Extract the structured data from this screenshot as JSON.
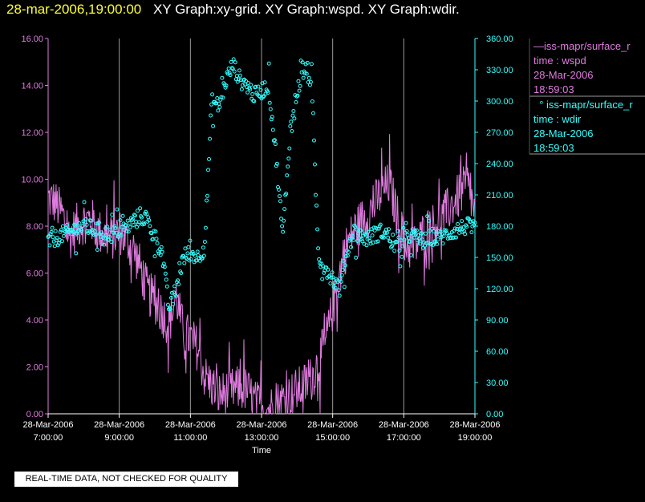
{
  "header": {
    "timestamp": "28-mar-2006,19:00:00",
    "title": "XY Graph:xy-grid.  XY Graph:wspd.  XY Graph:wdir."
  },
  "legend": {
    "wspd": {
      "name": "iss-mapr/surface_r",
      "line2": "time : wspd",
      "date": "28-Mar-2006",
      "time": "18:59:03",
      "color": "#e07ce0"
    },
    "wdir": {
      "name": "iss-mapr/surface_r",
      "line2": "time : wdir",
      "date": "28-Mar-2006",
      "time": "18:59:03",
      "color": "#33ffff"
    }
  },
  "footer": {
    "quality_note": "REAL-TIME DATA, NOT CHECKED FOR QUALITY"
  },
  "chart_data": {
    "type": "line",
    "xlabel": "Time",
    "xlim": [
      7.0,
      19.0
    ],
    "x_ticks": [
      {
        "value": 7,
        "date": "28-Mar-2006",
        "time": "7:00:00"
      },
      {
        "value": 9,
        "date": "28-Mar-2006",
        "time": "9:00:00"
      },
      {
        "value": 11,
        "date": "28-Mar-2006",
        "time": "11:00:00"
      },
      {
        "value": 13,
        "date": "28-Mar-2006",
        "time": "13:00:00"
      },
      {
        "value": 15,
        "date": "28-Mar-2006",
        "time": "15:00:00"
      },
      {
        "value": 17,
        "date": "28-Mar-2006",
        "time": "17:00:00"
      },
      {
        "value": 19,
        "date": "28-Mar-2006",
        "time": "19:00:00"
      }
    ],
    "left_axis": {
      "series": "wspd",
      "ylim": [
        0,
        16
      ],
      "tick_labels": [
        "0.00",
        "2.00",
        "4.00",
        "6.00",
        "8.00",
        "10.00",
        "12.00",
        "14.00",
        "16.00"
      ],
      "color": "#e07ce0"
    },
    "right_axis": {
      "series": "wdir",
      "ylim": [
        0,
        360
      ],
      "tick_labels": [
        "0.00",
        "30.00",
        "60.00",
        "90.00",
        "120.00",
        "150.00",
        "180.00",
        "210.00",
        "240.00",
        "270.00",
        "300.00",
        "330.00",
        "360.00"
      ],
      "color": "#33ffff"
    },
    "grid": "vertical lines at x ticks",
    "legend_position": "right",
    "series": [
      {
        "name": "iss-mapr/surface_r time : wspd",
        "style": "line",
        "axis": "left",
        "color": "#e07ce0",
        "x": [
          7.0,
          7.2,
          7.4,
          7.6,
          7.8,
          8.0,
          8.2,
          8.4,
          8.6,
          8.8,
          9.0,
          9.2,
          9.4,
          9.6,
          9.8,
          10.0,
          10.2,
          10.4,
          10.6,
          10.8,
          11.0,
          11.2,
          11.4,
          11.6,
          11.8,
          12.0,
          12.2,
          12.4,
          12.6,
          12.8,
          13.0,
          13.2,
          13.4,
          13.6,
          13.8,
          14.0,
          14.2,
          14.4,
          14.6,
          14.8,
          15.0,
          15.2,
          15.4,
          15.6,
          15.8,
          16.0,
          16.2,
          16.4,
          16.6,
          16.8,
          17.0,
          17.2,
          17.4,
          17.6,
          17.8,
          18.0,
          18.2,
          18.4,
          18.6,
          18.8,
          19.0
        ],
        "y": [
          9.2,
          9.0,
          8.5,
          7.5,
          8.0,
          8.2,
          8.3,
          7.8,
          7.6,
          7.5,
          7.8,
          7.4,
          7.0,
          6.2,
          5.2,
          4.8,
          4.3,
          3.8,
          5.0,
          3.5,
          3.2,
          2.8,
          1.6,
          1.2,
          0.8,
          0.9,
          1.0,
          1.1,
          1.0,
          0.5,
          0.3,
          0.2,
          0.4,
          0.6,
          0.8,
          1.0,
          1.2,
          1.5,
          2.2,
          3.0,
          4.5,
          6.0,
          7.2,
          7.8,
          8.2,
          8.5,
          9.0,
          9.5,
          9.8,
          8.5,
          7.5,
          7.0,
          7.3,
          7.8,
          8.0,
          8.3,
          8.6,
          9.0,
          9.4,
          9.8,
          8.5
        ],
        "noise": 1.0
      },
      {
        "name": "iss-mapr/surface_r time : wdir",
        "style": "scatter",
        "axis": "right",
        "color": "#33ffff",
        "x": [
          7.0,
          7.2,
          7.4,
          7.6,
          7.8,
          8.0,
          8.2,
          8.4,
          8.6,
          8.8,
          9.0,
          9.2,
          9.4,
          9.6,
          9.8,
          10.0,
          10.2,
          10.4,
          10.6,
          10.8,
          11.0,
          11.2,
          11.4,
          11.6,
          11.8,
          12.0,
          12.2,
          12.4,
          12.6,
          12.8,
          13.0,
          13.2,
          13.4,
          13.6,
          13.8,
          14.0,
          14.2,
          14.4,
          14.6,
          14.8,
          15.0,
          15.2,
          15.4,
          15.6,
          15.8,
          16.0,
          16.2,
          16.4,
          16.6,
          16.8,
          17.0,
          17.2,
          17.4,
          17.6,
          17.8,
          18.0,
          18.2,
          18.4,
          18.6,
          18.8,
          19.0
        ],
        "y": [
          165,
          168,
          172,
          174,
          178,
          180,
          178,
          176,
          174,
          172,
          176,
          178,
          185,
          190,
          185,
          170,
          155,
          100,
          120,
          150,
          155,
          150,
          160,
          300,
          295,
          320,
          335,
          320,
          315,
          305,
          310,
          315,
          250,
          170,
          270,
          310,
          330,
          320,
          150,
          140,
          130,
          120,
          155,
          175,
          170,
          168,
          172,
          175,
          170,
          160,
          165,
          172,
          168,
          165,
          170,
          168,
          172,
          175,
          178,
          180,
          176
        ],
        "noise": 8.0
      }
    ]
  }
}
